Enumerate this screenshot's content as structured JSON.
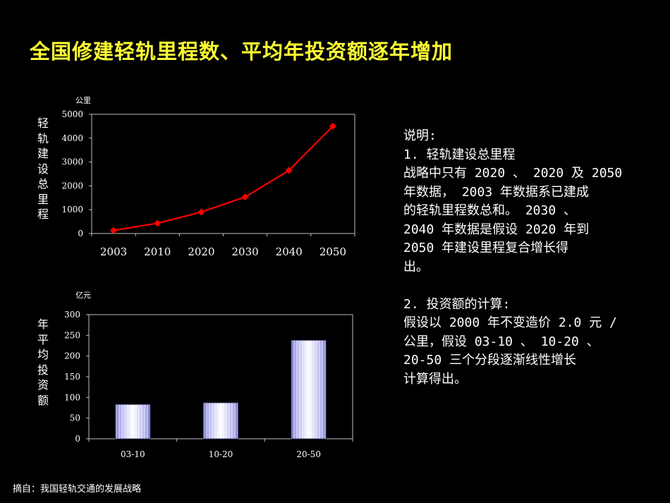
{
  "title": "全国修建轻轨里程数、平均年投资额逐年增加",
  "chart_data": [
    {
      "type": "line",
      "ylabel": "轻轨建设总里程",
      "unit": "公里",
      "categories": [
        "2003",
        "2010",
        "2020",
        "2030",
        "2040",
        "2050"
      ],
      "series": [
        {
          "values": [
            130,
            430,
            900,
            1530,
            2650,
            4500
          ]
        }
      ],
      "yticks": [
        "0",
        "1000",
        "2000",
        "3000",
        "4000",
        "5000"
      ],
      "ylim": [
        0,
        5000
      ],
      "color": "#ff0000",
      "grid": false
    },
    {
      "type": "bar",
      "ylabel": "年平均投资额",
      "unit": "亿元",
      "categories": [
        "03-10",
        "10-20",
        "20-50"
      ],
      "series": [
        {
          "values": [
            83,
            87,
            238
          ]
        }
      ],
      "yticks": [
        "0",
        "50",
        "100",
        "150",
        "200",
        "250",
        "300"
      ],
      "ylim": [
        0,
        300
      ],
      "color": "#9999ff",
      "grid": false
    }
  ],
  "notes": {
    "lines": [
      "说明:",
      "1. 轻轨建设总里程",
      "战略中只有 2020 、 2020 及 2050",
      "年数据， 2003 年数据系已建成",
      "的轻轨里程数总和。 2030 、",
      "2040 年数据是假设 2020 年到",
      "2050 年建设里程复合增长得",
      "出。",
      "",
      "2. 投资额的计算:",
      "假设以 2000 年不变造价 2.0 元 /",
      "公里，假设 03-10 、 10-20 、",
      "20-50 三个分段逐渐线性增长",
      "计算得出。"
    ]
  },
  "source": "摘自：我国轻轨交通的发展战略"
}
